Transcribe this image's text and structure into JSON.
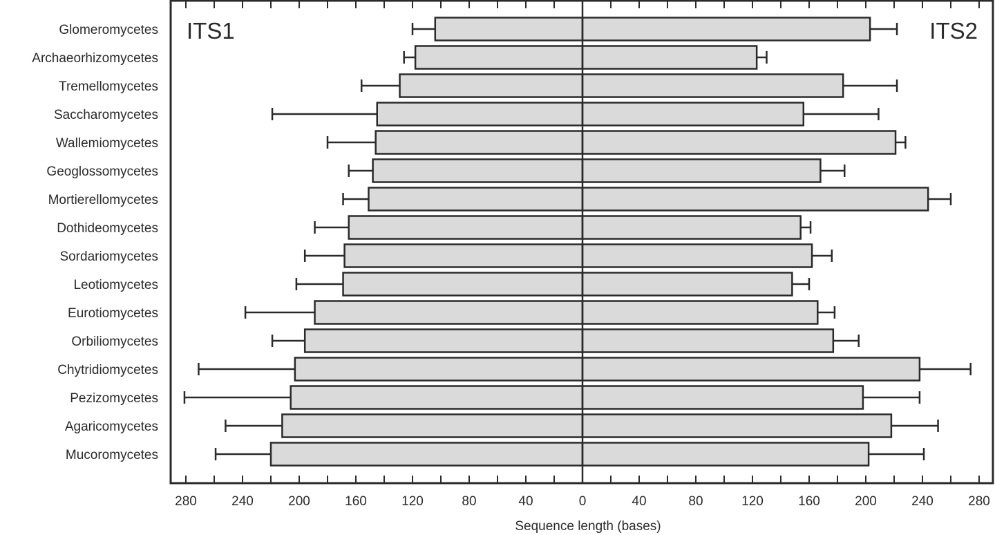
{
  "chart_data": {
    "type": "bar",
    "orientation": "horizontal-diverging",
    "title": "",
    "xlabel": "Sequence length (bases)",
    "ylabel": "",
    "xlim": [
      -280,
      280
    ],
    "x_ticks": [
      280,
      240,
      200,
      160,
      120,
      80,
      40,
      0,
      40,
      80,
      120,
      160,
      200,
      240,
      280
    ],
    "minor_tick_step": 20,
    "grid": false,
    "annotations": [
      {
        "text": "ITS1",
        "position": "top-left"
      },
      {
        "text": "ITS2",
        "position": "top-right"
      }
    ],
    "categories": [
      "Glomeromycetes",
      "Archaeorhizomycetes",
      "Tremellomycetes",
      "Saccharomycetes",
      "Wallemiomycetes",
      "Geoglossomycetes",
      "Mortierellomycetes",
      "Dothideomycetes",
      "Sordariomycetes",
      "Leotiomycetes",
      "Eurotiomycetes",
      "Orbiliomycetes",
      "Chytridiomycetes",
      "Pezizomycetes",
      "Agaricomycetes",
      "Mucoromycetes"
    ],
    "series": [
      {
        "name": "ITS1",
        "direction": "left",
        "values": [
          104,
          118,
          129,
          145,
          146,
          148,
          151,
          165,
          168,
          169,
          189,
          196,
          203,
          206,
          212,
          220
        ],
        "error_upper": [
          120,
          126,
          156,
          219,
          180,
          165,
          169,
          189,
          196,
          202,
          238,
          219,
          271,
          281,
          252,
          259
        ]
      },
      {
        "name": "ITS2",
        "direction": "right",
        "values": [
          203,
          123,
          184,
          156,
          221,
          168,
          244,
          154,
          162,
          148,
          166,
          177,
          238,
          198,
          218,
          202
        ],
        "error_upper": [
          222,
          130,
          222,
          209,
          228,
          185,
          260,
          161,
          176,
          160,
          178,
          195,
          274,
          238,
          251,
          241
        ]
      }
    ],
    "colors": {
      "bar_fill": "#d9dad9",
      "stroke": "#2a2a2a",
      "background": "#ffffff"
    }
  }
}
